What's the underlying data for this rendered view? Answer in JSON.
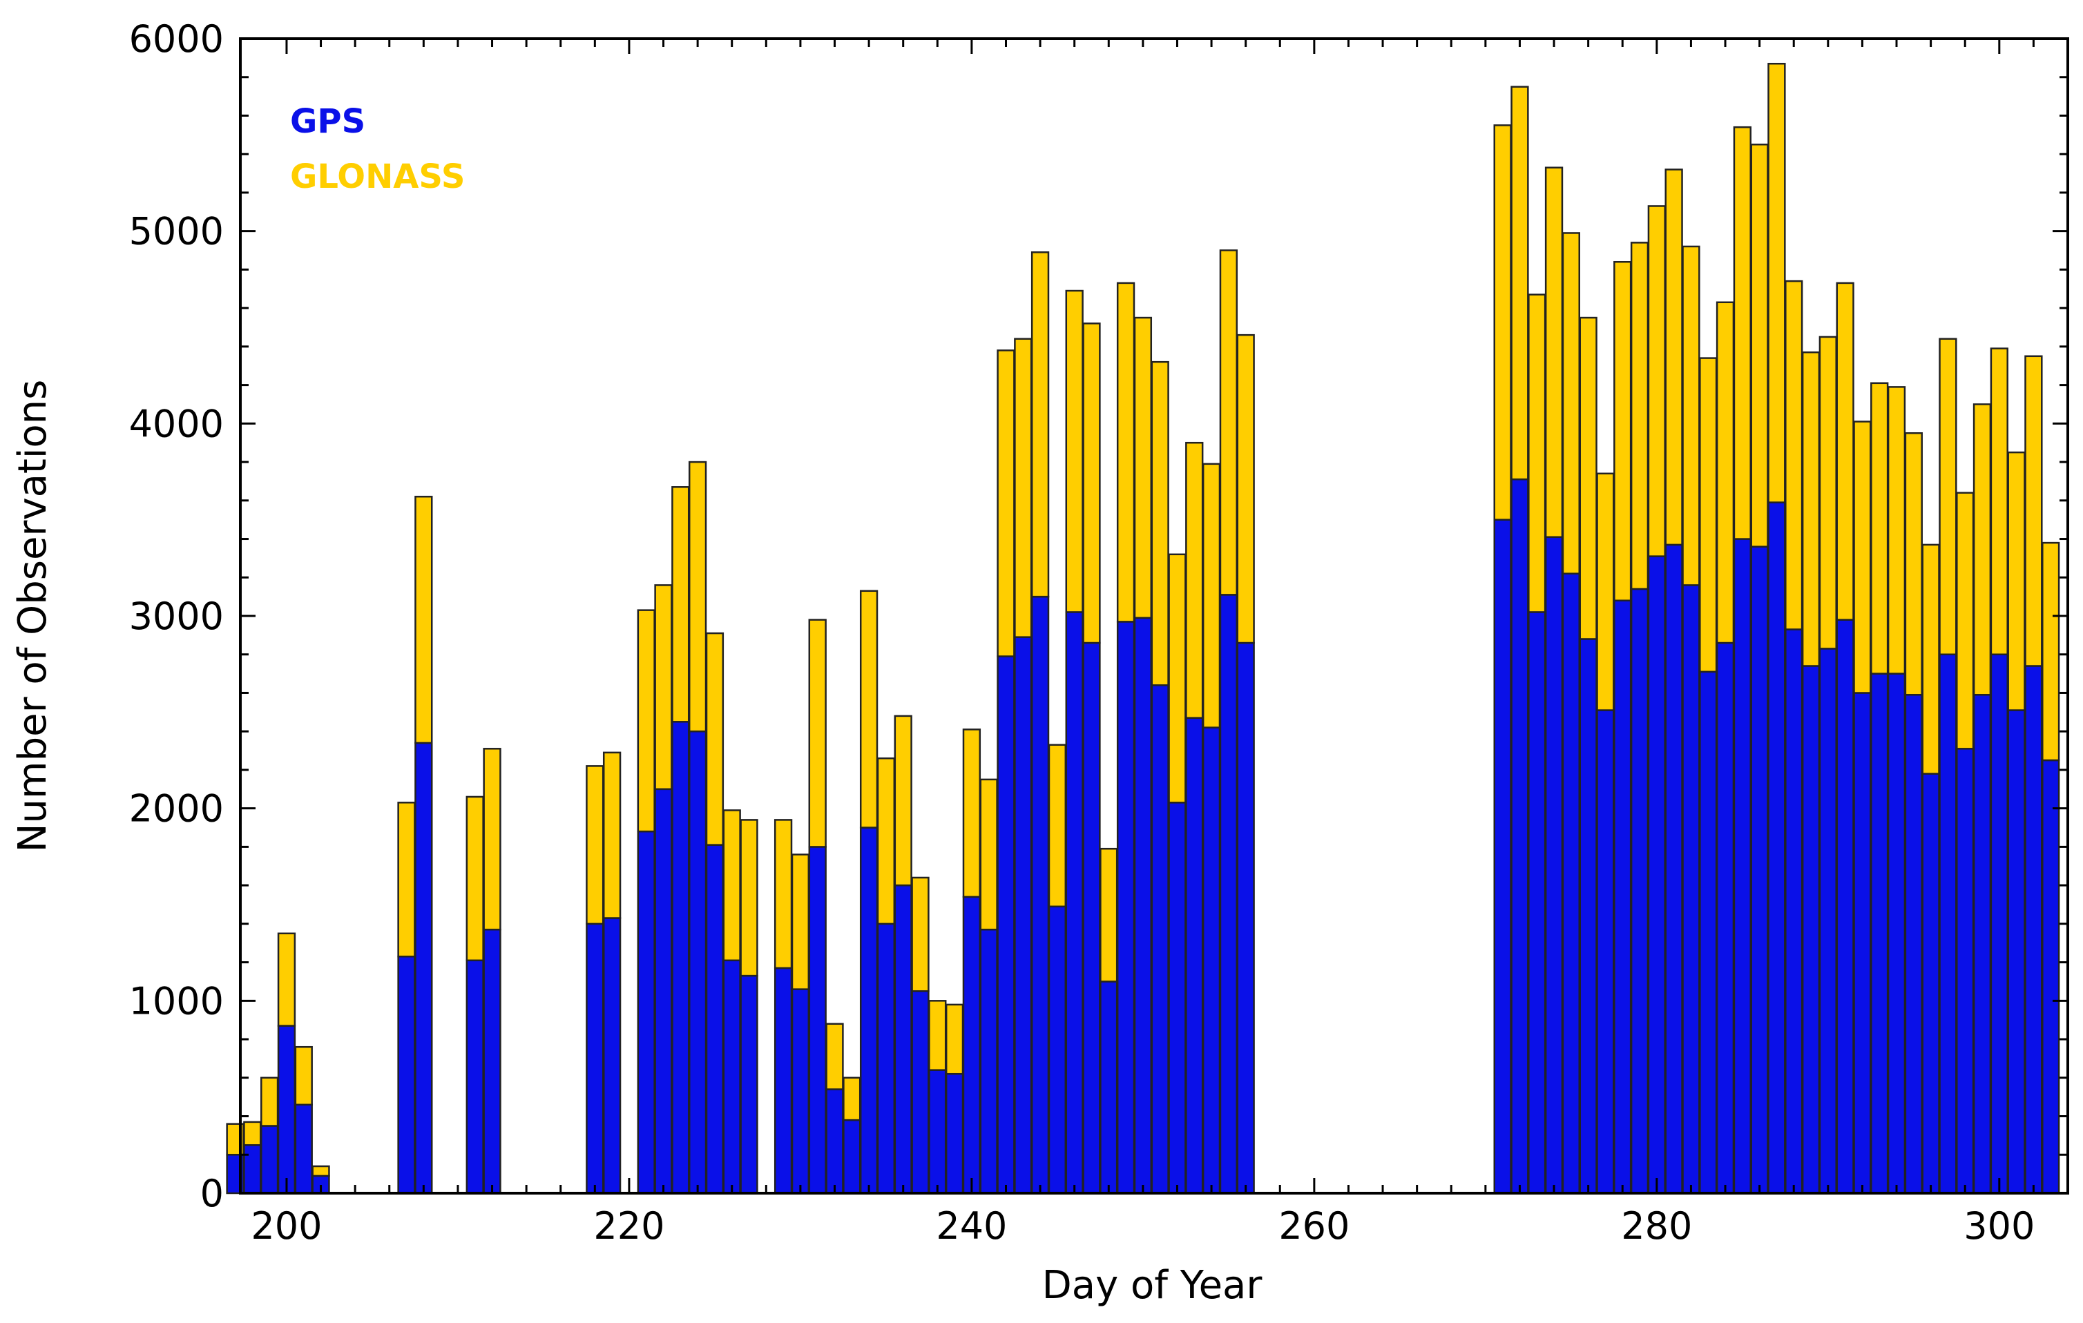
{
  "chart_data": {
    "type": "bar",
    "stacked": true,
    "xlabel": "Day of Year",
    "ylabel": "Number of Observations",
    "xlim": [
      197.3,
      304.0
    ],
    "ylim": [
      0,
      6000
    ],
    "x_ticks": [
      200,
      220,
      240,
      260,
      280,
      300
    ],
    "y_ticks": [
      0,
      1000,
      2000,
      3000,
      4000,
      5000,
      6000
    ],
    "legend_position": "top-left",
    "series": [
      {
        "name": "GPS",
        "color": "#0a10e8"
      },
      {
        "name": "GLONASS",
        "color": "#ffce00"
      }
    ],
    "days": [
      197,
      198,
      199,
      200,
      201,
      202,
      207,
      208,
      211,
      212,
      218,
      219,
      221,
      222,
      223,
      224,
      225,
      226,
      227,
      229,
      230,
      231,
      232,
      233,
      234,
      235,
      236,
      237,
      238,
      239,
      240,
      241,
      242,
      243,
      244,
      245,
      246,
      247,
      248,
      249,
      250,
      251,
      252,
      253,
      254,
      255,
      256,
      271,
      272,
      273,
      274,
      275,
      276,
      277,
      278,
      279,
      280,
      281,
      282,
      283,
      284,
      285,
      286,
      287,
      288,
      289,
      290,
      291,
      292,
      293,
      294,
      295,
      296,
      297,
      298,
      299,
      300,
      301,
      302,
      303
    ],
    "gps": [
      200,
      250,
      350,
      870,
      460,
      90,
      1230,
      2340,
      1210,
      1370,
      1400,
      1430,
      1880,
      2100,
      2450,
      2400,
      1810,
      1210,
      1130,
      1170,
      1060,
      1800,
      540,
      380,
      1900,
      1400,
      1600,
      1050,
      640,
      620,
      1540,
      1370,
      2790,
      2890,
      3100,
      1490,
      3020,
      2860,
      1100,
      2970,
      2990,
      2640,
      2030,
      2470,
      2420,
      3110,
      2860,
      3500,
      3710,
      3020,
      3410,
      3220,
      2880,
      2510,
      3080,
      3140,
      3310,
      3370,
      3160,
      2710,
      2860,
      3400,
      3360,
      3590,
      2930,
      2740,
      2830,
      2980,
      2600,
      2700,
      2700,
      2590,
      2180,
      2800,
      2310,
      2590,
      2800,
      2510,
      2740,
      2250
    ],
    "glonass": [
      160,
      120,
      250,
      480,
      300,
      50,
      800,
      1280,
      850,
      940,
      820,
      860,
      1150,
      1060,
      1220,
      1400,
      1100,
      780,
      810,
      770,
      700,
      1180,
      340,
      220,
      1230,
      860,
      880,
      590,
      360,
      360,
      870,
      780,
      1590,
      1550,
      1790,
      840,
      1670,
      1660,
      690,
      1760,
      1560,
      1680,
      1290,
      1430,
      1370,
      1790,
      1600,
      2050,
      2040,
      1650,
      1920,
      1770,
      1670,
      1230,
      1760,
      1800,
      1820,
      1950,
      1760,
      1630,
      1770,
      2140,
      2090,
      2280,
      1810,
      1630,
      1620,
      1750,
      1410,
      1510,
      1490,
      1360,
      1190,
      1640,
      1330,
      1510,
      1590,
      1340,
      1610,
      1130
    ],
    "legend": [
      "GPS",
      "GLONASS"
    ]
  }
}
